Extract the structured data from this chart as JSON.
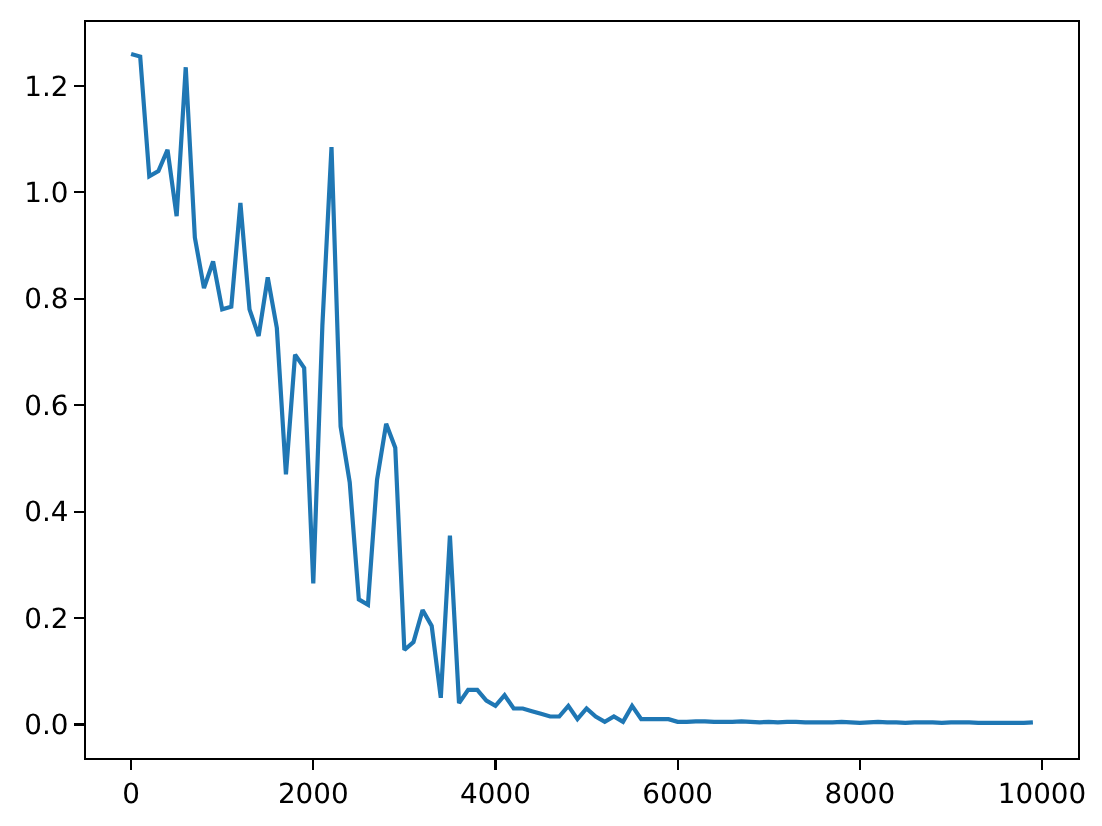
{
  "chart_data": {
    "type": "line",
    "x": [
      0,
      100,
      200,
      300,
      400,
      500,
      600,
      700,
      800,
      900,
      1000,
      1100,
      1200,
      1300,
      1400,
      1500,
      1600,
      1700,
      1800,
      1900,
      2000,
      2100,
      2200,
      2300,
      2400,
      2500,
      2600,
      2700,
      2800,
      2900,
      3000,
      3100,
      3200,
      3300,
      3400,
      3500,
      3600,
      3700,
      3800,
      3900,
      4000,
      4100,
      4200,
      4300,
      4400,
      4500,
      4600,
      4700,
      4800,
      4900,
      5000,
      5100,
      5200,
      5300,
      5400,
      5500,
      5600,
      5700,
      5800,
      5900,
      6000,
      6100,
      6200,
      6300,
      6400,
      6500,
      6600,
      6700,
      6800,
      6900,
      7000,
      7100,
      7200,
      7300,
      7400,
      7500,
      7600,
      7700,
      7800,
      7900,
      8000,
      8100,
      8200,
      8300,
      8400,
      8500,
      8600,
      8700,
      8800,
      8900,
      9000,
      9100,
      9200,
      9300,
      9400,
      9500,
      9600,
      9700,
      9800,
      9900
    ],
    "series": [
      {
        "color": "#1f77b4",
        "values": [
          1.26,
          1.255,
          1.03,
          1.04,
          1.08,
          0.955,
          1.235,
          0.915,
          0.82,
          0.87,
          0.78,
          0.785,
          0.98,
          0.78,
          0.73,
          0.84,
          0.745,
          0.47,
          0.695,
          0.67,
          0.265,
          0.75,
          1.085,
          0.56,
          0.455,
          0.235,
          0.225,
          0.46,
          0.565,
          0.52,
          0.14,
          0.155,
          0.215,
          0.185,
          0.05,
          0.355,
          0.04,
          0.065,
          0.065,
          0.045,
          0.035,
          0.055,
          0.03,
          0.03,
          0.025,
          0.02,
          0.015,
          0.015,
          0.035,
          0.01,
          0.03,
          0.015,
          0.005,
          0.015,
          0.005,
          0.035,
          0.01,
          0.01,
          0.01,
          0.01,
          0.005,
          0.005,
          0.006,
          0.006,
          0.005,
          0.005,
          0.005,
          0.006,
          0.005,
          0.004,
          0.005,
          0.004,
          0.005,
          0.005,
          0.004,
          0.004,
          0.004,
          0.004,
          0.005,
          0.004,
          0.003,
          0.004,
          0.005,
          0.004,
          0.004,
          0.003,
          0.004,
          0.004,
          0.004,
          0.003,
          0.004,
          0.004,
          0.004,
          0.003,
          0.003,
          0.003,
          0.003,
          0.003,
          0.003,
          0.004
        ]
      }
    ],
    "xlim": [
      -495,
      10395
    ],
    "xticks": [
      0,
      2000,
      4000,
      6000,
      8000,
      10000
    ],
    "ylim": [
      -0.063,
      1.32
    ],
    "yticks": [
      {
        "value": 0,
        "label": "0.0"
      },
      0.2,
      0.4,
      0.6,
      0.8,
      {
        "value": 1,
        "label": "1.0"
      },
      1.2
    ]
  }
}
